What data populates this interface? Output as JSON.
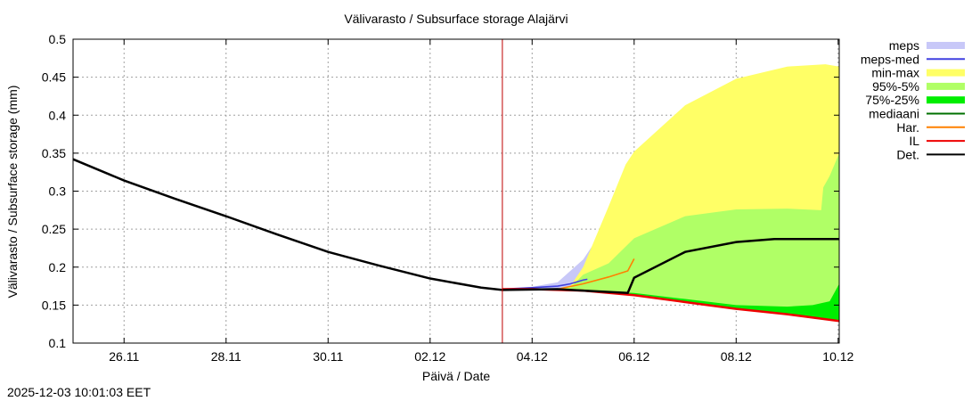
{
  "chart_data": {
    "type": "area",
    "title": "Välivarasto / Subsurface storage  Alajärvi",
    "xlabel": "Päivä / Date",
    "ylabel": "Välivarasto / Subsurface storage (mm)",
    "timestamp": "2025-12-03 10:01:03 EET",
    "xlim": [
      "2025-11-25T00:00",
      "2025-12-10T00:30"
    ],
    "ylim": [
      0.1,
      0.5
    ],
    "yticks": [
      0.1,
      0.15,
      0.2,
      0.25,
      0.3,
      0.35,
      0.4,
      0.45,
      0.5
    ],
    "ytick_labels": [
      "0.1",
      "0.15",
      "0.2",
      "0.25",
      "0.3",
      "0.35",
      "0.4",
      "0.45",
      "0.5"
    ],
    "xticks": [
      "2025-11-26T00:00",
      "2025-11-28T00:00",
      "2025-11-30T00:00",
      "2025-12-02T00:00",
      "2025-12-04T00:00",
      "2025-12-06T00:00",
      "2025-12-08T00:00",
      "2025-12-10T00:00"
    ],
    "xtick_labels": [
      "26.11",
      "28.11",
      "30.11",
      "02.12",
      "04.12",
      "06.12",
      "08.12",
      "10.12"
    ],
    "grid": true,
    "forecast_start": "2025-12-03T10:00",
    "legend_position": "right",
    "colors": {
      "meps": "#c8c8f8",
      "meps-med": "#4040e0",
      "min-max": "#ffff66",
      "95%-5%": "#b0ff66",
      "75%-25%": "#00ee00",
      "mediaani": "#007000",
      "Har.": "#ff8000",
      "IL": "#ee0000",
      "Det.": "#000000",
      "forecast_line": "#c00000"
    },
    "bands": [
      {
        "name": "meps",
        "x": [
          "2025-12-03T10:00",
          "2025-12-04T00:00",
          "2025-12-04T12:00",
          "2025-12-05T00:00",
          "2025-12-05T12:00",
          "2025-12-05T20:00"
        ],
        "upper": [
          0.171,
          0.174,
          0.18,
          0.21,
          0.26,
          0.3
        ],
        "lower": [
          0.171,
          0.171,
          0.171,
          0.17,
          0.169,
          0.168
        ]
      },
      {
        "name": "min-max",
        "x": [
          "2025-12-04T12:00",
          "2025-12-04T18:00",
          "2025-12-05T00:00",
          "2025-12-05T12:00",
          "2025-12-05T20:00",
          "2025-12-06T00:00",
          "2025-12-07T00:00",
          "2025-12-08T00:00",
          "2025-12-09T00:00",
          "2025-12-09T18:00",
          "2025-12-10T00:30"
        ],
        "upper": [
          0.171,
          0.175,
          0.2,
          0.28,
          0.335,
          0.352,
          0.413,
          0.448,
          0.464,
          0.467,
          0.464
        ],
        "lower": [
          0.171,
          0.17,
          0.169,
          0.168,
          0.166,
          0.163,
          0.154,
          0.145,
          0.138,
          0.132,
          0.129
        ]
      },
      {
        "name": "95%-5%",
        "x": [
          "2025-12-04T12:00",
          "2025-12-04T18:00",
          "2025-12-05T00:00",
          "2025-12-05T12:00",
          "2025-12-06T00:00",
          "2025-12-07T00:00",
          "2025-12-08T00:00",
          "2025-12-09T00:00",
          "2025-12-09T16:00",
          "2025-12-09T17:00",
          "2025-12-09T20:00",
          "2025-12-10T00:30"
        ],
        "upper": [
          0.171,
          0.173,
          0.19,
          0.205,
          0.238,
          0.267,
          0.276,
          0.277,
          0.275,
          0.305,
          0.32,
          0.35
        ],
        "lower": [
          0.171,
          0.17,
          0.169,
          0.168,
          0.163,
          0.154,
          0.145,
          0.138,
          0.133,
          0.132,
          0.131,
          0.129
        ]
      },
      {
        "name": "75%-25%",
        "x": [
          "2025-12-05T00:00",
          "2025-12-06T00:00",
          "2025-12-07T00:00",
          "2025-12-08T00:00",
          "2025-12-09T00:00",
          "2025-12-09T12:00",
          "2025-12-09T20:00",
          "2025-12-10T00:30"
        ],
        "upper": [
          0.169,
          0.166,
          0.158,
          0.15,
          0.148,
          0.15,
          0.155,
          0.178
        ],
        "lower": [
          0.169,
          0.163,
          0.154,
          0.145,
          0.138,
          0.134,
          0.131,
          0.129
        ]
      }
    ],
    "series": [
      {
        "name": "mediaani",
        "x": [
          "2025-11-25T00:00",
          "2025-11-26T00:00",
          "2025-11-27T00:00",
          "2025-11-28T00:00",
          "2025-11-29T00:00",
          "2025-11-30T00:00",
          "2025-12-01T00:00",
          "2025-12-02T00:00",
          "2025-12-03T00:00",
          "2025-12-03T10:00"
        ],
        "y": [
          0.342,
          0.314,
          0.29,
          0.267,
          0.243,
          0.22,
          0.202,
          0.185,
          0.173,
          0.17
        ]
      },
      {
        "name": "meps-med",
        "x": [
          "2025-12-03T10:00",
          "2025-12-04T00:00",
          "2025-12-04T12:00",
          "2025-12-04T18:00",
          "2025-12-05T00:00",
          "2025-12-05T02:00"
        ],
        "y": [
          0.171,
          0.173,
          0.175,
          0.178,
          0.183,
          0.184
        ]
      },
      {
        "name": "Har.",
        "x": [
          "2025-12-04T12:00",
          "2025-12-05T00:00",
          "2025-12-05T12:00",
          "2025-12-05T21:00",
          "2025-12-06T00:00"
        ],
        "y": [
          0.171,
          0.178,
          0.187,
          0.195,
          0.211
        ]
      },
      {
        "name": "IL",
        "x": [
          "2025-12-03T10:00",
          "2025-12-04T00:00",
          "2025-12-05T00:00",
          "2025-12-06T00:00",
          "2025-12-07T00:00",
          "2025-12-08T00:00",
          "2025-12-09T00:00",
          "2025-12-10T00:30"
        ],
        "y": [
          0.171,
          0.171,
          0.169,
          0.163,
          0.154,
          0.145,
          0.138,
          0.129
        ]
      },
      {
        "name": "Det.",
        "x": [
          "2025-11-25T00:00",
          "2025-11-26T00:00",
          "2025-11-27T00:00",
          "2025-11-28T00:00",
          "2025-11-29T00:00",
          "2025-11-30T00:00",
          "2025-12-01T00:00",
          "2025-12-02T00:00",
          "2025-12-03T00:00",
          "2025-12-03T10:00",
          "2025-12-04T12:00",
          "2025-12-05T00:00",
          "2025-12-05T21:00",
          "2025-12-06T00:00",
          "2025-12-07T00:00",
          "2025-12-08T00:00",
          "2025-12-08T18:00",
          "2025-12-10T00:30"
        ],
        "y": [
          0.342,
          0.314,
          0.29,
          0.267,
          0.243,
          0.22,
          0.202,
          0.185,
          0.173,
          0.17,
          0.171,
          0.169,
          0.166,
          0.186,
          0.22,
          0.233,
          0.237,
          0.237
        ]
      }
    ],
    "legend": [
      {
        "name": "meps",
        "kind": "band"
      },
      {
        "name": "meps-med",
        "kind": "line"
      },
      {
        "name": "min-max",
        "kind": "band"
      },
      {
        "name": "95%-5%",
        "kind": "band"
      },
      {
        "name": "75%-25%",
        "kind": "band"
      },
      {
        "name": "mediaani",
        "kind": "line"
      },
      {
        "name": "Har.",
        "kind": "line"
      },
      {
        "name": "IL",
        "kind": "line"
      },
      {
        "name": "Det.",
        "kind": "line"
      }
    ]
  }
}
